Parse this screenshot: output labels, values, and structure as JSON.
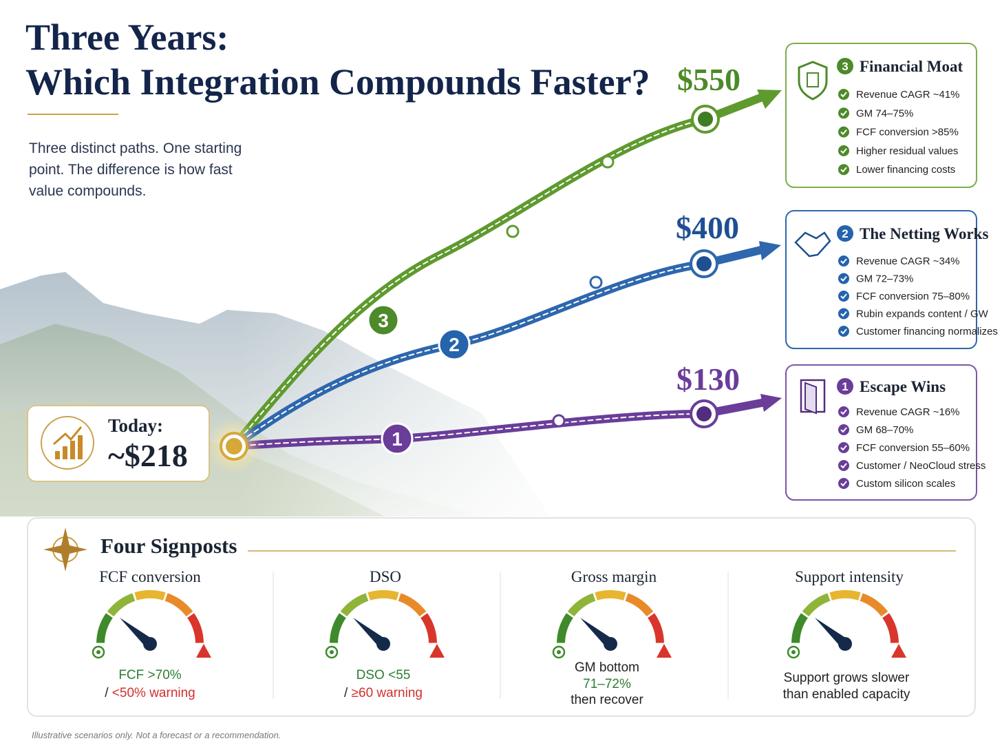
{
  "header": {
    "title_line1": "Three Years:",
    "title_line2": "Which Integration Compounds Faster?",
    "intro": [
      "Three distinct paths. One starting",
      "point. The difference is how fast",
      "value compounds."
    ]
  },
  "start": {
    "label": "Today:",
    "value": "~$218"
  },
  "paths": [
    {
      "number": "3",
      "end_value": "$550",
      "title": "Financial Moat",
      "items": [
        "Revenue CAGR ~41%",
        "GM 74–75%",
        "FCF conversion >85%",
        "Higher residual values",
        "Lower financing costs"
      ]
    },
    {
      "number": "2",
      "end_value": "$400",
      "title": "The Netting Works",
      "items": [
        "Revenue CAGR ~34%",
        "GM 72–73%",
        "FCF conversion 75–80%",
        "Rubin expands content / GW",
        "Customer financing normalizes"
      ]
    },
    {
      "number": "1",
      "end_value": "$130",
      "title": "Escape Wins",
      "items": [
        "Revenue CAGR ~16%",
        "GM 68–70%",
        "FCF conversion 55–60%",
        "Customer / NeoCloud stress",
        "Custom silicon scales"
      ]
    }
  ],
  "signposts": {
    "title": "Four Signposts",
    "gauges": [
      {
        "title": "FCF conversion",
        "target": "FCF >70%",
        "separator": "/",
        "warning": "<50% warning"
      },
      {
        "title": "DSO",
        "target": "DSO <55",
        "separator": "/",
        "warning": "≥60 warning"
      },
      {
        "title": "Gross margin",
        "lines": [
          "GM bottom",
          "71–72%",
          "then recover"
        ]
      },
      {
        "title": "Support intensity",
        "lines": [
          "Support grows slower",
          "than enabled capacity"
        ]
      }
    ]
  },
  "footer": "Illustrative scenarios only. Not a forecast or a recommendation."
}
